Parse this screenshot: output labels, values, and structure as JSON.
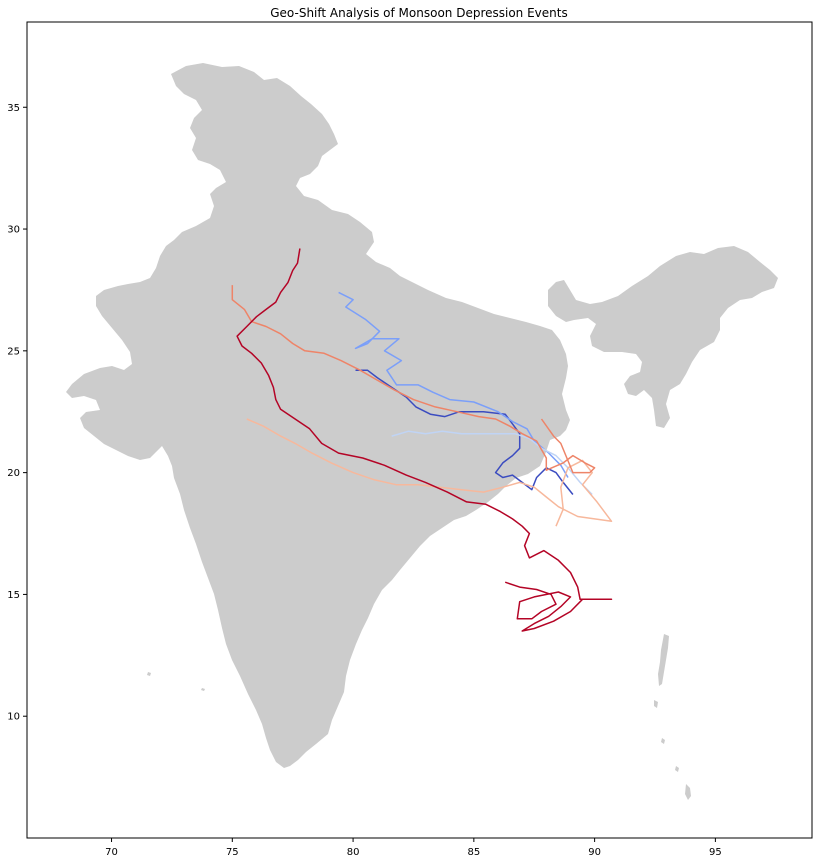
{
  "chart_data": {
    "type": "map",
    "title": "Geo-Shift Analysis of Monsoon Depression Events",
    "xlim": [
      66.5,
      99.0
    ],
    "ylim": [
      5.0,
      38.5
    ],
    "x_ticks": [
      70,
      75,
      80,
      85,
      90,
      95
    ],
    "y_ticks": [
      10,
      15,
      20,
      25,
      30,
      35
    ],
    "grid": false,
    "land_color": "#cccccc",
    "tracks": [
      {
        "color": "#3b4cc0",
        "points": [
          [
            80.1,
            24.2
          ],
          [
            80.6,
            24.2
          ],
          [
            81.0,
            23.9
          ],
          [
            81.6,
            23.5
          ],
          [
            82.2,
            23.1
          ],
          [
            82.6,
            22.7
          ],
          [
            83.2,
            22.4
          ],
          [
            83.8,
            22.3
          ],
          [
            84.4,
            22.5
          ],
          [
            85.4,
            22.5
          ],
          [
            86.3,
            22.4
          ],
          [
            86.6,
            22.0
          ],
          [
            86.9,
            21.6
          ],
          [
            86.9,
            21.0
          ],
          [
            86.6,
            20.7
          ],
          [
            86.2,
            20.4
          ],
          [
            85.9,
            20.0
          ],
          [
            86.2,
            19.8
          ],
          [
            86.6,
            19.9
          ],
          [
            87.0,
            19.6
          ],
          [
            87.4,
            19.3
          ],
          [
            87.6,
            19.8
          ],
          [
            88.0,
            20.2
          ],
          [
            88.4,
            20.0
          ],
          [
            88.7,
            19.6
          ],
          [
            89.1,
            19.1
          ]
        ]
      },
      {
        "color": "#7b9ff9",
        "points": [
          [
            79.4,
            27.4
          ],
          [
            80.0,
            27.1
          ],
          [
            79.7,
            26.8
          ],
          [
            80.5,
            26.3
          ],
          [
            81.1,
            25.8
          ],
          [
            80.6,
            25.3
          ],
          [
            80.1,
            25.1
          ],
          [
            80.8,
            25.5
          ],
          [
            81.9,
            25.5
          ],
          [
            81.3,
            25.0
          ],
          [
            82.0,
            24.6
          ],
          [
            81.4,
            24.2
          ],
          [
            81.8,
            23.6
          ],
          [
            82.7,
            23.6
          ],
          [
            83.3,
            23.3
          ],
          [
            84.0,
            23.0
          ],
          [
            85.0,
            22.9
          ],
          [
            86.0,
            22.5
          ],
          [
            86.6,
            22.1
          ],
          [
            87.2,
            21.8
          ],
          [
            87.5,
            21.3
          ],
          [
            88.1,
            20.8
          ],
          [
            88.6,
            20.3
          ],
          [
            88.9,
            19.8
          ]
        ]
      },
      {
        "color": "#c0d4f5",
        "points": [
          [
            81.6,
            21.5
          ],
          [
            82.3,
            21.7
          ],
          [
            83.0,
            21.6
          ],
          [
            83.7,
            21.7
          ],
          [
            84.5,
            21.6
          ],
          [
            85.3,
            21.6
          ],
          [
            86.0,
            21.6
          ],
          [
            86.7,
            21.6
          ],
          [
            87.3,
            21.4
          ],
          [
            87.8,
            21.0
          ],
          [
            88.4,
            20.7
          ],
          [
            88.9,
            20.2
          ],
          [
            89.4,
            19.6
          ],
          [
            89.9,
            19.1
          ]
        ]
      },
      {
        "color": "#f7b89c",
        "points": [
          [
            75.6,
            22.2
          ],
          [
            76.3,
            21.9
          ],
          [
            77.0,
            21.5
          ],
          [
            77.6,
            21.2
          ],
          [
            78.3,
            20.8
          ],
          [
            79.1,
            20.4
          ],
          [
            80.0,
            20.0
          ],
          [
            80.9,
            19.7
          ],
          [
            81.8,
            19.5
          ],
          [
            82.7,
            19.5
          ],
          [
            83.6,
            19.4
          ],
          [
            84.5,
            19.3
          ],
          [
            85.4,
            19.2
          ],
          [
            86.2,
            19.4
          ],
          [
            86.9,
            19.6
          ],
          [
            87.5,
            19.4
          ],
          [
            88.0,
            19.0
          ],
          [
            88.5,
            18.6
          ],
          [
            89.3,
            18.2
          ],
          [
            90.7,
            18.0
          ],
          [
            90.1,
            18.8
          ],
          [
            89.5,
            19.5
          ],
          [
            89.9,
            20.0
          ],
          [
            89.5,
            20.5
          ],
          [
            88.9,
            20.2
          ],
          [
            88.6,
            19.4
          ],
          [
            88.7,
            18.5
          ],
          [
            88.4,
            17.8
          ]
        ]
      },
      {
        "color": "#ee8468",
        "points": [
          [
            75.0,
            27.7
          ],
          [
            75.0,
            27.1
          ],
          [
            75.5,
            26.7
          ],
          [
            75.8,
            26.2
          ],
          [
            76.4,
            26.0
          ],
          [
            77.0,
            25.7
          ],
          [
            77.5,
            25.3
          ],
          [
            78.0,
            25.0
          ],
          [
            78.8,
            24.9
          ],
          [
            79.5,
            24.6
          ],
          [
            80.3,
            24.2
          ],
          [
            81.0,
            23.8
          ],
          [
            81.7,
            23.4
          ],
          [
            82.5,
            23.0
          ],
          [
            83.4,
            22.7
          ],
          [
            84.3,
            22.5
          ],
          [
            85.2,
            22.3
          ],
          [
            85.9,
            22.2
          ],
          [
            86.5,
            21.9
          ],
          [
            87.0,
            21.6
          ],
          [
            87.6,
            21.3
          ],
          [
            88.0,
            20.6
          ],
          [
            88.0,
            20.1
          ],
          [
            88.7,
            20.4
          ],
          [
            89.1,
            20.7
          ],
          [
            89.6,
            20.4
          ],
          [
            90.0,
            20.2
          ],
          [
            89.8,
            20.0
          ],
          [
            89.1,
            20.0
          ],
          [
            88.6,
            21.2
          ],
          [
            88.3,
            21.5
          ],
          [
            87.8,
            22.2
          ]
        ]
      },
      {
        "color": "#b40426",
        "points": [
          [
            77.8,
            29.2
          ],
          [
            77.7,
            28.6
          ],
          [
            77.5,
            28.3
          ],
          [
            77.3,
            27.8
          ],
          [
            77.0,
            27.4
          ],
          [
            76.8,
            27.0
          ],
          [
            76.4,
            26.7
          ],
          [
            76.0,
            26.4
          ],
          [
            75.6,
            26.0
          ],
          [
            75.2,
            25.6
          ],
          [
            75.4,
            25.2
          ],
          [
            75.8,
            24.9
          ],
          [
            76.2,
            24.5
          ],
          [
            76.5,
            24.0
          ],
          [
            76.7,
            23.5
          ],
          [
            76.8,
            23.0
          ],
          [
            77.0,
            22.6
          ],
          [
            77.6,
            22.2
          ],
          [
            78.2,
            21.8
          ],
          [
            78.7,
            21.2
          ],
          [
            79.4,
            20.8
          ],
          [
            80.4,
            20.6
          ],
          [
            81.3,
            20.3
          ],
          [
            82.2,
            19.9
          ],
          [
            83.0,
            19.6
          ],
          [
            83.9,
            19.2
          ],
          [
            84.7,
            18.8
          ],
          [
            85.5,
            18.7
          ],
          [
            86.1,
            18.4
          ],
          [
            86.6,
            18.1
          ],
          [
            87.0,
            17.8
          ],
          [
            87.3,
            17.5
          ],
          [
            87.1,
            17.0
          ],
          [
            87.3,
            16.5
          ],
          [
            87.9,
            16.8
          ],
          [
            88.5,
            16.4
          ],
          [
            89.0,
            15.9
          ],
          [
            89.3,
            15.3
          ],
          [
            89.4,
            14.8
          ],
          [
            90.7,
            14.8
          ],
          [
            89.5,
            14.8
          ],
          [
            89.0,
            14.3
          ],
          [
            88.3,
            13.9
          ],
          [
            87.5,
            13.6
          ],
          [
            87.0,
            13.5
          ],
          [
            87.5,
            13.8
          ],
          [
            88.1,
            14.1
          ],
          [
            88.6,
            14.5
          ],
          [
            89.0,
            14.9
          ],
          [
            88.5,
            15.1
          ],
          [
            87.5,
            14.9
          ],
          [
            86.9,
            14.7
          ],
          [
            86.8,
            14.0
          ],
          [
            87.4,
            14.0
          ],
          [
            87.8,
            14.3
          ],
          [
            88.4,
            14.6
          ],
          [
            88.2,
            15.0
          ],
          [
            87.6,
            15.2
          ],
          [
            86.9,
            15.3
          ],
          [
            86.3,
            15.5
          ]
        ]
      }
    ]
  }
}
